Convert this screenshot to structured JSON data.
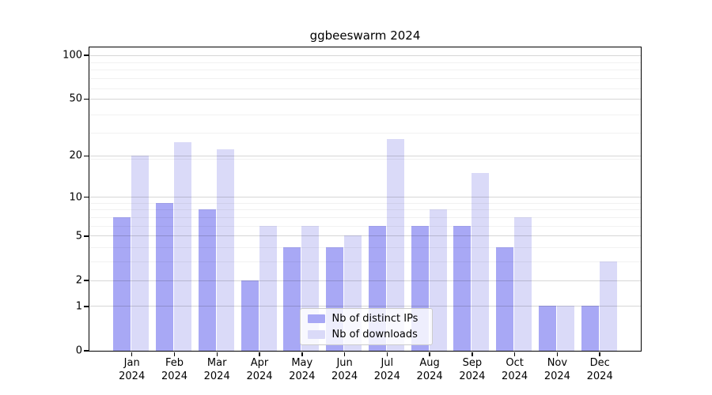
{
  "title": "ggbeeswarm 2024",
  "legend": {
    "items": [
      {
        "label": "Nb of distinct IPs"
      },
      {
        "label": "Nb of downloads"
      }
    ]
  },
  "axes": {
    "y_tick_labels": [
      "0",
      "1",
      "2",
      "5",
      "10",
      "20",
      "50",
      "100"
    ],
    "x_tick_year_line": "2024",
    "x_tick_month_lines": [
      "Jan",
      "Feb",
      "Mar",
      "Apr",
      "May",
      "Jun",
      "Jul",
      "Aug",
      "Sep",
      "Oct",
      "Nov",
      "Dec"
    ]
  },
  "chart_data": {
    "type": "bar",
    "title": "ggbeeswarm 2024",
    "categories": [
      "Jan 2024",
      "Feb 2024",
      "Mar 2024",
      "Apr 2024",
      "May 2024",
      "Jun 2024",
      "Jul 2024",
      "Aug 2024",
      "Sep 2024",
      "Oct 2024",
      "Nov 2024",
      "Dec 2024"
    ],
    "series": [
      {
        "name": "Nb of distinct IPs",
        "color": "#a8a8f5",
        "values": [
          7,
          9,
          8,
          2,
          4,
          4,
          6,
          6,
          6,
          4,
          1,
          1
        ]
      },
      {
        "name": "Nb of downloads",
        "color": "#dadaf8",
        "values": [
          20,
          25,
          22,
          6,
          6,
          5,
          26,
          8,
          15,
          7,
          1,
          3
        ]
      }
    ],
    "y_scale": "log10(1+x)",
    "y_ticks": [
      0,
      1,
      2,
      5,
      10,
      20,
      50,
      100
    ],
    "ylim": [
      0,
      113
    ],
    "grid": true,
    "grid_major_at": [
      1,
      2,
      5,
      10,
      20,
      50,
      100
    ],
    "grid_minor_at": [
      3,
      4,
      6,
      7,
      8,
      9,
      19,
      29,
      39,
      59,
      69,
      79,
      89
    ],
    "legend_position": "lower center"
  }
}
